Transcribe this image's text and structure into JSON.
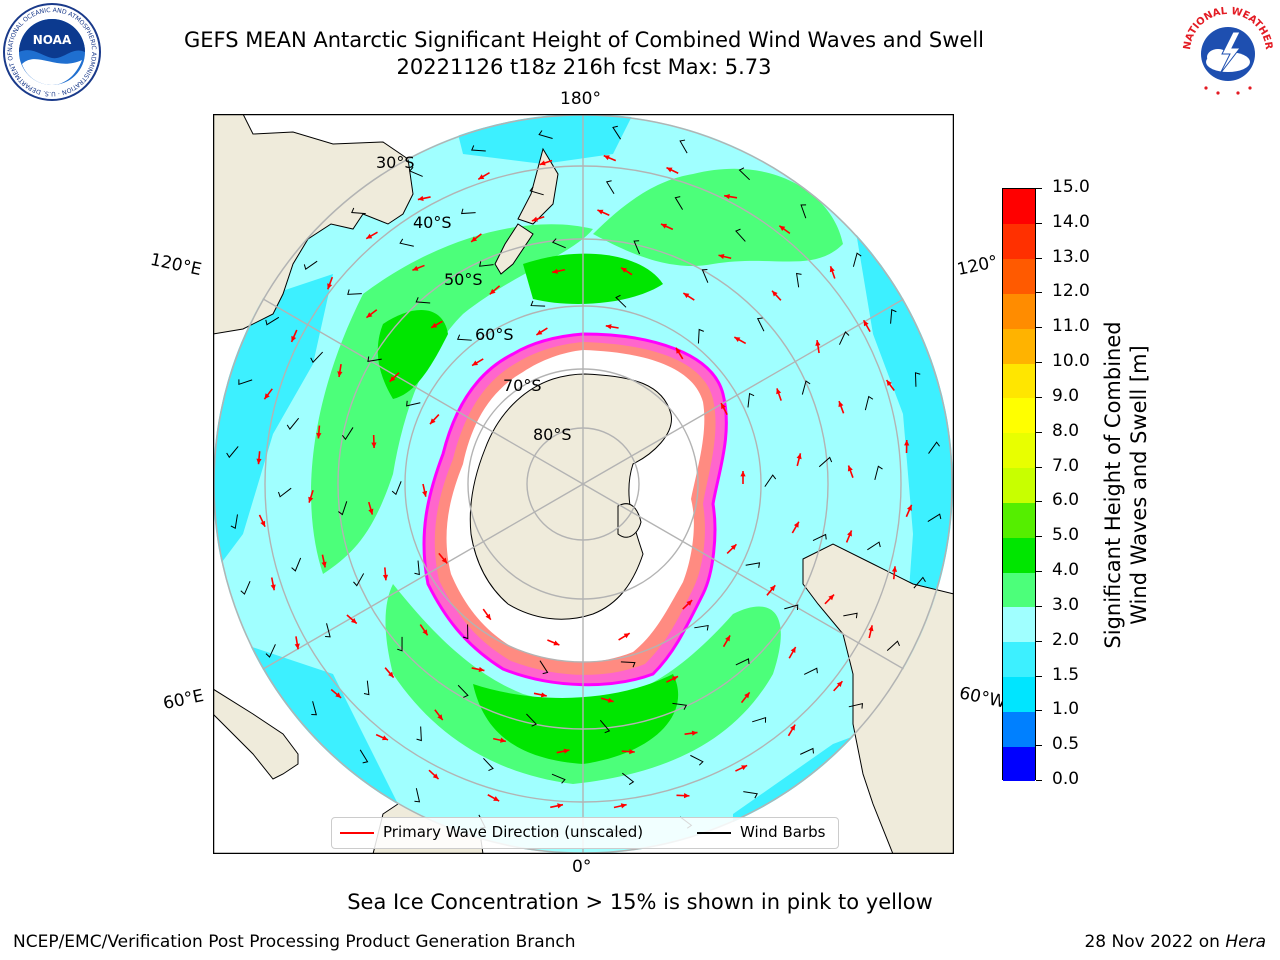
{
  "title": {
    "line1": "GEFS MEAN Antarctic Significant Height of Combined Wind Waves and Swell",
    "line2": "20221126 t18z 216h fcst   Max: 5.73"
  },
  "map": {
    "projection": "south-polar-stereographic",
    "lon_labels": {
      "top": "180°",
      "bottom": "0°",
      "upper_left": "120°E",
      "upper_right": "120°",
      "lower_left": "60°E",
      "lower_right": "60°W"
    },
    "lat_labels": [
      "30°S",
      "40°S",
      "50°S",
      "60°S",
      "70°S",
      "80°S"
    ],
    "land_color": "#efebdb",
    "sea_ice_color": "#ffffff"
  },
  "legend": {
    "wave_label": "Primary Wave Direction (unscaled)",
    "wave_color": "#ff0000",
    "barb_label": "Wind Barbs",
    "barb_color": "#000000"
  },
  "colorbar": {
    "label_line1": "Significant Height of Combined",
    "label_line2": "Wind Waves and Swell [m]",
    "ticks": [
      "0.0",
      "0.5",
      "1.0",
      "1.5",
      "2.0",
      "3.0",
      "4.0",
      "5.0",
      "6.0",
      "7.0",
      "8.0",
      "9.0",
      "10.0",
      "11.0",
      "12.0",
      "13.0",
      "14.0",
      "15.0"
    ],
    "colors": [
      "#0000ff",
      "#0080ff",
      "#00e5ff",
      "#3df0ff",
      "#a0ffff",
      "#4cff7a",
      "#00e600",
      "#55ee00",
      "#c8ff00",
      "#e8ff00",
      "#ffff00",
      "#ffe600",
      "#ffb300",
      "#ff8c00",
      "#ff5a00",
      "#ff3000",
      "#ff0000"
    ]
  },
  "footnote": "Sea Ice Concentration > 15% is shown in pink to yellow",
  "credits": {
    "left": "NCEP/EMC/Verification Post Processing Product Generation Branch",
    "right_prefix": "28 Nov 2022 on ",
    "right_host": "Hera"
  },
  "logos": {
    "noaa_text": "NOAA",
    "noaa_ring": "NATIONAL OCEANIC AND ATMOSPHERIC ADMINISTRATION · U.S. DEPARTMENT OF COMMERCE",
    "nws_ring": "NATIONAL WEATHER SERVICE"
  }
}
